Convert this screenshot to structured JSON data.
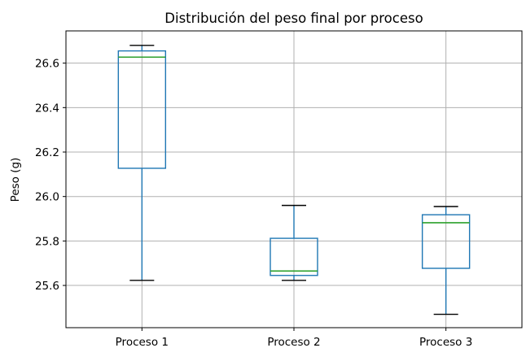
{
  "chart_data": {
    "type": "boxplot",
    "title": "Distribución del peso final por proceso",
    "xlabel": "",
    "ylabel": "Peso (g)",
    "ylim": [
      25.41,
      26.745
    ],
    "yticks": [
      "25.6",
      "25.8",
      "26.0",
      "26.2",
      "26.4",
      "26.6"
    ],
    "grid": true,
    "categories": [
      "Proceso 1",
      "Proceso 2",
      "Proceso 3"
    ],
    "boxes": [
      {
        "label": "Proceso 1",
        "whisker_low": 25.623,
        "q1": 26.127,
        "median": 26.627,
        "q3": 26.655,
        "whisker_high": 26.68
      },
      {
        "label": "Proceso 2",
        "whisker_low": 25.623,
        "q1": 25.645,
        "median": 25.665,
        "q3": 25.812,
        "whisker_high": 25.96
      },
      {
        "label": "Proceso 3",
        "whisker_low": 25.47,
        "q1": 25.677,
        "median": 25.882,
        "q3": 25.918,
        "whisker_high": 25.955
      }
    ],
    "colors": {
      "box": "#1f77b4",
      "median": "#2ca02c",
      "whisker_cap": "#000000",
      "grid": "#b0b0b0"
    }
  }
}
